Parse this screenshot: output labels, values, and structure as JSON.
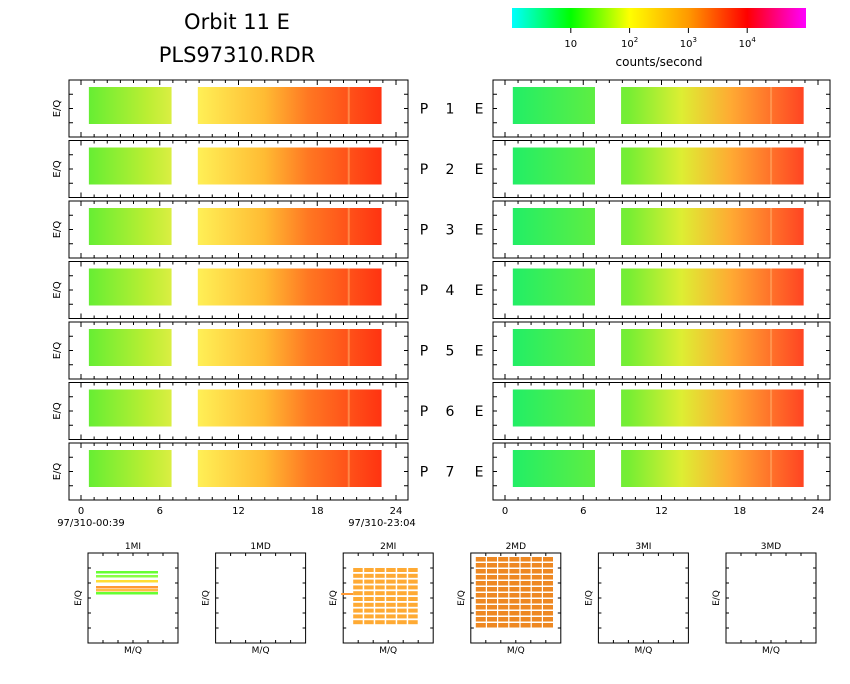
{
  "title": {
    "line1": "Orbit  11  E",
    "line2": "PLS97310.RDR"
  },
  "colorbar": {
    "label": "counts/second",
    "ticks": [
      {
        "base": "10",
        "exp": "",
        "value": 10
      },
      {
        "base": "10",
        "exp": "2",
        "value": 100
      },
      {
        "base": "10",
        "exp": "3",
        "value": 1000
      },
      {
        "base": "10",
        "exp": "4",
        "value": 10000
      }
    ],
    "range": [
      1,
      100000
    ],
    "scale": "log",
    "colors": [
      "#00ffff",
      "#00ff00",
      "#ffff00",
      "#ff9900",
      "#ff0000",
      "#ff00ff"
    ]
  },
  "axes": {
    "ylabel": "E/Q",
    "xticks": [
      "0",
      "6",
      "12",
      "18",
      "24"
    ],
    "start_time": "97/310-00:39",
    "end_time": "97/310-23:04"
  },
  "rows": [
    {
      "p": "P",
      "num": "1",
      "e": "E"
    },
    {
      "p": "P",
      "num": "2",
      "e": "E"
    },
    {
      "p": "P",
      "num": "3",
      "e": "E"
    },
    {
      "p": "P",
      "num": "4",
      "e": "E"
    },
    {
      "p": "P",
      "num": "5",
      "e": "E"
    },
    {
      "p": "P",
      "num": "6",
      "e": "E"
    },
    {
      "p": "P",
      "num": "7",
      "e": "E"
    }
  ],
  "mini_panels": [
    {
      "title": "1MI",
      "xlabel": "M/Q",
      "ylabel": "E/Q"
    },
    {
      "title": "1MD",
      "xlabel": "M/Q",
      "ylabel": "E/Q"
    },
    {
      "title": "2MI",
      "xlabel": "M/Q",
      "ylabel": "E/Q"
    },
    {
      "title": "2MD",
      "xlabel": "M/Q",
      "ylabel": "E/Q"
    },
    {
      "title": "3MI",
      "xlabel": "M/Q",
      "ylabel": "E/Q"
    },
    {
      "title": "3MD",
      "xlabel": "M/Q",
      "ylabel": "E/Q"
    }
  ],
  "chart_data": {
    "type": "heatmap",
    "x_unit": "hours",
    "xlim": [
      0,
      24
    ],
    "data_gap_hours": [
      6.9,
      8.9
    ],
    "columns": [
      {
        "side": "left",
        "data_hours": [
          0.6,
          22.9
        ]
      },
      {
        "side": "right",
        "data_hours": [
          0.6,
          22.9
        ]
      }
    ],
    "intensity_trend": [
      {
        "hour": 1,
        "level": "green"
      },
      {
        "hour": 10,
        "level": "yellow"
      },
      {
        "hour": 14,
        "level": "orange"
      },
      {
        "hour": 18,
        "level": "red"
      },
      {
        "hour": 22,
        "level": "red"
      }
    ]
  }
}
